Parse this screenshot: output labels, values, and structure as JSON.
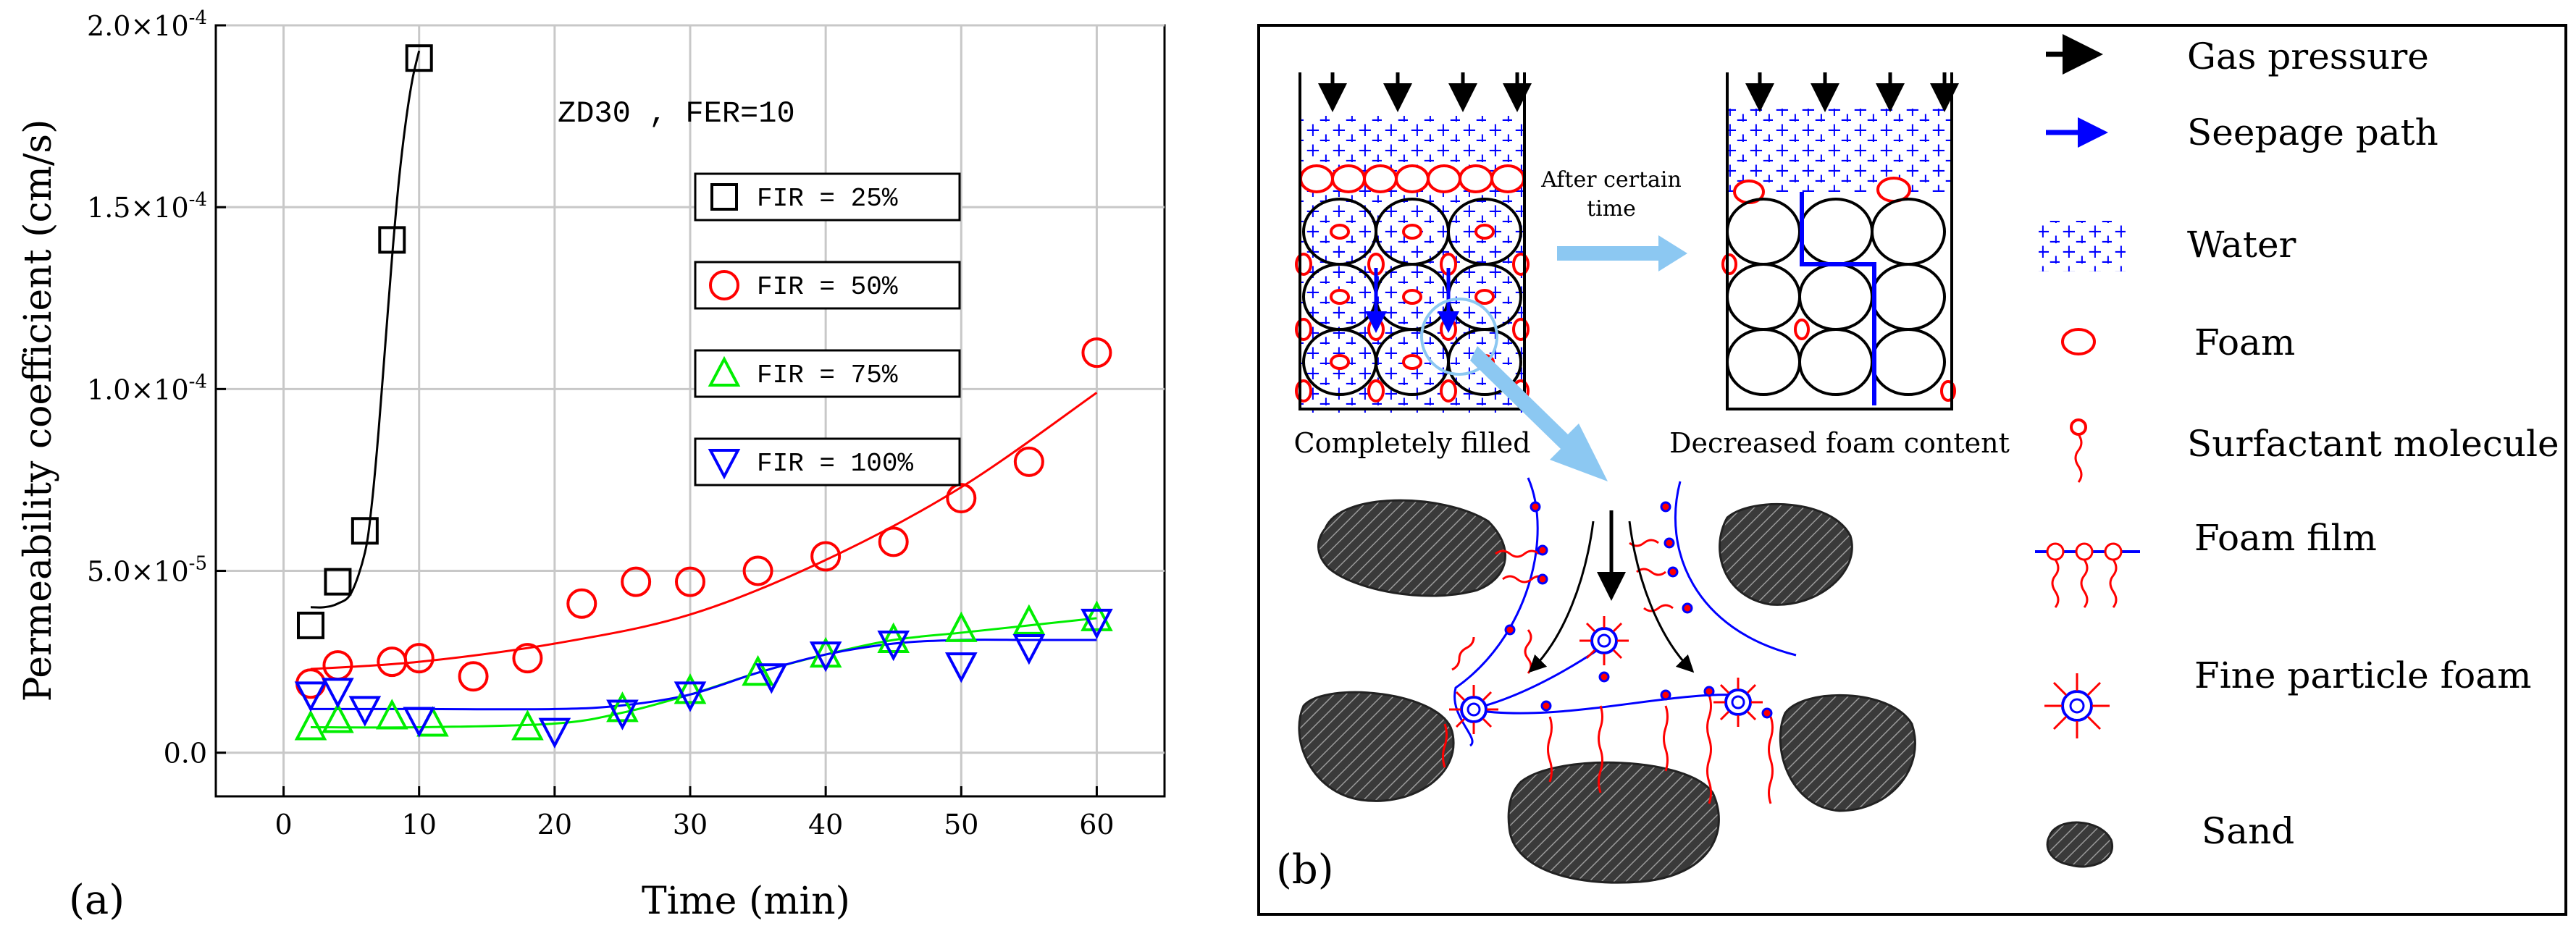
{
  "chart_data": {
    "type": "scatter",
    "panel_label": "(a)",
    "annotation": "ZD30  , FER=10",
    "xlabel": "Time (min)",
    "ylabel": "Permeability coefficient (cm/s)",
    "xlim": [
      -5,
      65
    ],
    "ylim": [
      -1.2e-05,
      0.0002
    ],
    "x_ticks": [
      0,
      10,
      20,
      30,
      40,
      50,
      60
    ],
    "x_tick_labels": [
      "0",
      "10",
      "20",
      "30",
      "40",
      "50",
      "60"
    ],
    "y_ticks": [
      0,
      5e-05,
      0.0001,
      0.00015,
      0.0002
    ],
    "y_tick_labels": [
      {
        "mant": "0.0",
        "exp": ""
      },
      {
        "mant": "5.0×10",
        "exp": "-5"
      },
      {
        "mant": "1.0×10",
        "exp": "-4"
      },
      {
        "mant": "1.5×10",
        "exp": "-4"
      },
      {
        "mant": "2.0×10",
        "exp": "-4"
      }
    ],
    "grid": true,
    "series": [
      {
        "name": "FIR = 25%",
        "marker": "square",
        "color": "#000000",
        "x": [
          2,
          4,
          6,
          8,
          10
        ],
        "y": [
          3.5e-05,
          4.7e-05,
          6.1e-05,
          0.000141,
          0.000191
        ],
        "fit_x": [
          2,
          3,
          4,
          5,
          6,
          6.5,
          7,
          7.5,
          8,
          8.5,
          9,
          9.5,
          10
        ],
        "fit_y": [
          4e-05,
          4e-05,
          4.1e-05,
          4.4e-05,
          5.5e-05,
          6.8e-05,
          8.8e-05,
          0.000112,
          0.000136,
          0.000157,
          0.000173,
          0.000185,
          0.000193
        ]
      },
      {
        "name": "FIR = 50%",
        "marker": "circle",
        "color": "#ff0000",
        "x": [
          2,
          4,
          8,
          10,
          14,
          18,
          22,
          26,
          30,
          35,
          40,
          45,
          50,
          55,
          60
        ],
        "y": [
          1.9e-05,
          2.4e-05,
          2.5e-05,
          2.6e-05,
          2.1e-05,
          2.6e-05,
          4.1e-05,
          4.7e-05,
          4.7e-05,
          5e-05,
          5.4e-05,
          5.8e-05,
          7e-05,
          8e-05,
          0.00011
        ],
        "fit_x": [
          2,
          10,
          20,
          30,
          40,
          50,
          60
        ],
        "fit_y": [
          2.3e-05,
          2.5e-05,
          3e-05,
          3.8e-05,
          5.3e-05,
          7.3e-05,
          9.9e-05
        ]
      },
      {
        "name": "FIR = 75%",
        "marker": "triangle-up",
        "color": "#00ee00",
        "x": [
          2,
          4,
          8,
          11,
          18,
          25,
          30,
          35,
          40,
          45,
          50,
          55,
          60
        ],
        "y": [
          7e-06,
          9e-06,
          1e-05,
          8e-06,
          7e-06,
          1.2e-05,
          1.7e-05,
          2.2e-05,
          2.7e-05,
          3.1e-05,
          3.4e-05,
          3.6e-05,
          3.7e-05
        ],
        "fit_x": [
          2,
          10,
          20,
          25,
          30,
          35,
          40,
          45,
          50,
          55,
          60
        ],
        "fit_y": [
          7e-06,
          7e-06,
          8e-06,
          1.1e-05,
          1.6e-05,
          2.2e-05,
          2.7e-05,
          3.1e-05,
          3.3e-05,
          3.5e-05,
          3.7e-05
        ]
      },
      {
        "name": "FIR = 100%",
        "marker": "triangle-down",
        "color": "#0000ff",
        "x": [
          2,
          4,
          6,
          10,
          20,
          25,
          30,
          36,
          40,
          45,
          50,
          55,
          60
        ],
        "y": [
          1.6e-05,
          1.7e-05,
          1.2e-05,
          9e-06,
          6e-06,
          1.1e-05,
          1.6e-05,
          2.1e-05,
          2.7e-05,
          3e-05,
          2.4e-05,
          2.9e-05,
          3.6e-05
        ],
        "fit_x": [
          2,
          10,
          20,
          25,
          30,
          35,
          40,
          45,
          50,
          55,
          60
        ],
        "fit_y": [
          1.2e-05,
          1.2e-05,
          1.2e-05,
          1.3e-05,
          1.6e-05,
          2.2e-05,
          2.7e-05,
          3e-05,
          3.1e-05,
          3.1e-05,
          3.1e-05
        ]
      }
    ]
  },
  "diagram": {
    "panel_label": "(b)",
    "caption_left": "Completely filled",
    "caption_right": "Decreased foam content",
    "arrow_text_line1": "After certain",
    "arrow_text_line2": "time",
    "legend": [
      {
        "icon": "gas-pressure",
        "label": "Gas pressure"
      },
      {
        "icon": "seepage-path",
        "label": "Seepage path"
      },
      {
        "icon": "water",
        "label": "Water"
      },
      {
        "icon": "foam",
        "label": "Foam"
      },
      {
        "icon": "surfactant-molecule",
        "label": "Surfactant molecule"
      },
      {
        "icon": "foam-film",
        "label": "Foam film"
      },
      {
        "icon": "fine-particle-foam",
        "label": "Fine particle foam"
      },
      {
        "icon": "sand",
        "label": "Sand"
      }
    ],
    "colors": {
      "red": "#ff0000",
      "blue": "#0000ff",
      "light_blue": "#8cc8f2",
      "sand": "#3a3a3a"
    }
  }
}
